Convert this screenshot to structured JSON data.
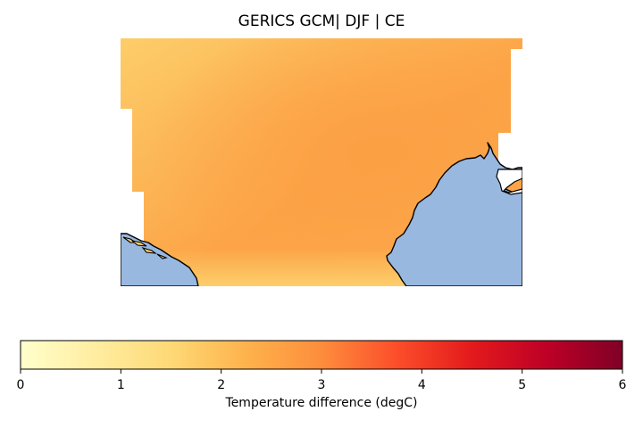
{
  "title": "GERICS GCM| DJF | CE",
  "colors": {
    "sea": "#99b8e0",
    "coastline": "#000000",
    "background": "#ffffff"
  },
  "map": {
    "description_region": "Central Europe with Adriatic and Black Sea coastlines",
    "field_colors": {
      "low": "#fdd06c",
      "high": "#fca34a"
    }
  },
  "colorbar": {
    "label": "Temperature difference (degC)",
    "cmap": "YlOrRd",
    "range": [
      0,
      6
    ],
    "ticks": [
      "0",
      "1",
      "2",
      "3",
      "4",
      "5",
      "6"
    ],
    "stops": [
      "#ffffcc",
      "#ffeda0",
      "#fed976",
      "#feb24c",
      "#fd8d3c",
      "#fc4e2a",
      "#e31a1c",
      "#bd0026",
      "#800026"
    ]
  }
}
